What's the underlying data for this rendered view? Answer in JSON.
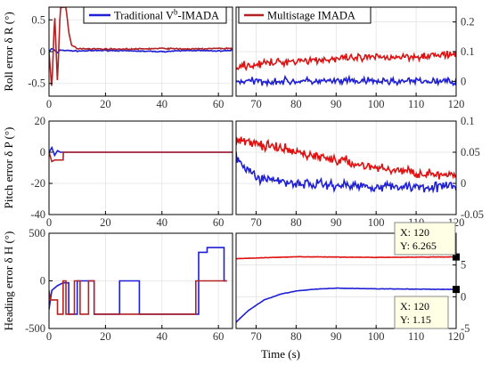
{
  "legend": {
    "items": [
      {
        "label": "Traditional V",
        "superscript": "b",
        "suffix": "-IMADA",
        "color": "#1f1fd6"
      },
      {
        "label": "Multistage IMADA",
        "superscript": "",
        "suffix": "",
        "color": "#b22222"
      }
    ]
  },
  "colors": {
    "blue": "#1f1fd6",
    "red": "#b22222",
    "red_bright": "#e01010"
  },
  "xlabel": "Time (s)",
  "datatips": [
    {
      "x_label": "X: 120",
      "y_label": "Y: 6.265"
    },
    {
      "x_label": "X: 120",
      "y_label": "Y: 1.15"
    }
  ],
  "chart_data": [
    {
      "id": "roll-left",
      "type": "line",
      "ylabel": "Roll error δ R (°)",
      "xlim": [
        0,
        65
      ],
      "ylim": [
        -0.7,
        0.7
      ],
      "xticks": [
        0,
        20,
        40,
        60
      ],
      "yticks": [
        -0.5,
        0,
        0.5
      ],
      "ytick_labels": [
        "-0.5",
        "0",
        "0.5"
      ],
      "series": [
        {
          "name": "Traditional Vb-IMADA",
          "x": [
            0,
            1,
            2,
            3,
            4,
            5,
            10,
            20,
            30,
            40,
            50,
            60,
            65
          ],
          "y": [
            0,
            0.05,
            0.02,
            -0.02,
            0.03,
            0.02,
            0.01,
            0.02,
            0.01,
            0.0,
            0.02,
            0.01,
            0.02
          ]
        },
        {
          "name": "Multistage IMADA",
          "x": [
            0,
            1,
            2,
            3,
            4,
            5,
            6,
            7,
            8,
            10,
            20,
            30,
            40,
            50,
            60,
            65
          ],
          "y": [
            0,
            -0.6,
            0.6,
            -0.5,
            0.7,
            0.7,
            0.7,
            0.3,
            0.1,
            0.05,
            0.04,
            0.04,
            0.05,
            0.04,
            0.05,
            0.05
          ]
        }
      ]
    },
    {
      "id": "roll-right",
      "type": "line",
      "xlim": [
        65,
        120
      ],
      "ylim": [
        -0.05,
        0.25
      ],
      "xticks": [
        70,
        80,
        90,
        100,
        110,
        120
      ],
      "yticks": [
        0,
        0.1,
        0.2
      ],
      "ytick_labels": [
        "0",
        "0.1",
        "0.2"
      ],
      "series": [
        {
          "name": "Traditional Vb-IMADA",
          "x": [
            65,
            80,
            100,
            120
          ],
          "y": [
            0.0,
            0.0,
            0.0,
            0.0
          ]
        },
        {
          "name": "Multistage IMADA",
          "x": [
            65,
            80,
            100,
            120
          ],
          "y": [
            0.05,
            0.07,
            0.08,
            0.09
          ]
        }
      ]
    },
    {
      "id": "pitch-left",
      "type": "line",
      "ylabel": "Pitch error δ P (°)",
      "xlim": [
        0,
        65
      ],
      "ylim": [
        -40,
        20
      ],
      "xticks": [
        0,
        20,
        40,
        60
      ],
      "yticks": [
        -40,
        -20,
        0,
        20
      ],
      "ytick_labels": [
        "-40",
        "-20",
        "0",
        "20"
      ],
      "series": [
        {
          "name": "Traditional Vb-IMADA",
          "x": [
            0,
            1,
            2,
            3,
            4,
            5,
            65
          ],
          "y": [
            0,
            3,
            -2,
            1,
            0,
            0,
            0
          ]
        },
        {
          "name": "Multistage IMADA",
          "x": [
            0,
            1,
            2,
            5,
            5.1,
            65
          ],
          "y": [
            0,
            -6,
            -5,
            -5,
            0,
            0
          ]
        }
      ]
    },
    {
      "id": "pitch-right",
      "type": "line",
      "xlim": [
        65,
        120
      ],
      "ylim": [
        -0.05,
        0.1
      ],
      "xticks": [
        70,
        80,
        90,
        100,
        110,
        120
      ],
      "yticks": [
        -0.05,
        0,
        0.05,
        0.1
      ],
      "ytick_labels": [
        "-0.05",
        "0",
        "0.05",
        "0.1"
      ],
      "series": [
        {
          "name": "Traditional Vb-IMADA",
          "x": [
            65,
            70,
            80,
            100,
            120
          ],
          "y": [
            0.04,
            0.01,
            0.0,
            -0.005,
            -0.005
          ]
        },
        {
          "name": "Multistage IMADA",
          "x": [
            65,
            80,
            100,
            120
          ],
          "y": [
            0.07,
            0.05,
            0.025,
            0.01
          ]
        }
      ]
    },
    {
      "id": "heading-left",
      "type": "line",
      "ylabel": "Heading error δ H (°)",
      "xlim": [
        0,
        65
      ],
      "ylim": [
        -500,
        500
      ],
      "xticks": [
        0,
        20,
        40,
        60
      ],
      "yticks": [
        -500,
        0,
        500
      ],
      "ytick_labels": [
        "-500",
        "0",
        "500"
      ],
      "series": [
        {
          "name": "Traditional Vb-IMADA",
          "x": [
            0,
            1,
            3,
            5,
            7,
            7,
            10,
            10,
            16,
            16,
            25,
            25,
            32,
            32,
            53,
            53,
            56,
            56,
            62,
            62,
            63
          ],
          "y": [
            -300,
            -100,
            -50,
            -20,
            -20,
            -350,
            -350,
            0,
            0,
            -350,
            -350,
            0,
            0,
            -350,
            -350,
            300,
            300,
            350,
            350,
            0,
            0
          ]
        },
        {
          "name": "Multistage IMADA",
          "x": [
            0,
            0.5,
            2,
            3,
            3,
            5,
            5,
            6,
            6,
            9,
            9,
            11,
            11,
            14,
            14,
            16,
            16,
            52,
            52,
            63
          ],
          "y": [
            -100,
            -200,
            -200,
            -200,
            -350,
            -350,
            0,
            0,
            -350,
            -350,
            0,
            0,
            -350,
            -350,
            0,
            0,
            -350,
            -350,
            0,
            0
          ]
        }
      ]
    },
    {
      "id": "heading-right",
      "type": "line",
      "xlim": [
        65,
        120
      ],
      "ylim": [
        -5,
        10
      ],
      "xticks": [
        70,
        80,
        90,
        100,
        110,
        120
      ],
      "yticks": [
        -5,
        0,
        5
      ],
      "ytick_labels": [
        "-5",
        "0",
        "5"
      ],
      "series": [
        {
          "name": "Traditional Vb-IMADA",
          "x": [
            65,
            68,
            72,
            76,
            80,
            85,
            90,
            95,
            100,
            110,
            120
          ],
          "y": [
            -4,
            -2.2,
            -0.5,
            0.4,
            0.9,
            1.2,
            1.35,
            1.3,
            1.25,
            1.2,
            1.15
          ]
        },
        {
          "name": "Multistage IMADA",
          "x": [
            65,
            80,
            100,
            120
          ],
          "y": [
            6.0,
            6.3,
            6.2,
            6.265
          ]
        }
      ]
    }
  ]
}
